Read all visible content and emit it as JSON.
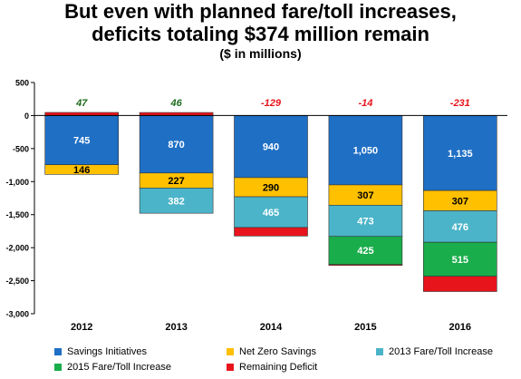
{
  "title_line1": "But even with planned fare/toll increases,",
  "title_line2": "deficits totaling $374 million remain",
  "subtitle": "($ in millions)",
  "chart_data": {
    "type": "bar",
    "stacked": true,
    "categories": [
      "2012",
      "2013",
      "2014",
      "2015",
      "2016"
    ],
    "ylim": [
      -3000,
      500
    ],
    "yticks": [
      500,
      0,
      -500,
      -1000,
      -1500,
      -2000,
      -2500,
      -3000
    ],
    "ytick_labels": [
      "500",
      "0",
      "-500",
      "-1,000",
      "-1,500",
      "-2,000",
      "-2,500",
      "-3,000"
    ],
    "grid": false,
    "legend_position": "bottom",
    "series": [
      {
        "name": "Savings Initiatives",
        "color": "#1f6fc5",
        "values": [
          -745,
          -870,
          -940,
          -1050,
          -1135
        ],
        "labels": [
          "745",
          "870",
          "940",
          "1,050",
          "1,135"
        ],
        "label_color": "#ffffff"
      },
      {
        "name": "Net Zero Savings",
        "color": "#ffc000",
        "values": [
          -146,
          -227,
          -290,
          -307,
          -307
        ],
        "labels": [
          "146",
          "227",
          "290",
          "307",
          "307"
        ],
        "label_color": "#000000"
      },
      {
        "name": "2013 Fare/Toll Increase",
        "color": "#4bb4c8",
        "values": [
          0,
          -382,
          -465,
          -473,
          -476
        ],
        "labels": [
          "",
          "382",
          "465",
          "473",
          "476"
        ],
        "label_color": "#ffffff"
      },
      {
        "name": "2015 Fare/Toll Increase",
        "color": "#1aad4b",
        "values": [
          0,
          0,
          0,
          -425,
          -515
        ],
        "labels": [
          "",
          "",
          "",
          "425",
          "515"
        ],
        "label_color": "#ffffff"
      },
      {
        "name": "Remaining Deficit",
        "color": "#e8141b",
        "values": [
          47,
          46,
          -129,
          -14,
          -231
        ],
        "labels": [
          "",
          "",
          "",
          "",
          ""
        ],
        "label_color": "#ffffff"
      }
    ],
    "totals": {
      "values": [
        47,
        46,
        -129,
        -14,
        -231
      ],
      "labels": [
        "47",
        "46",
        "-129",
        "-14",
        "-231"
      ],
      "colors": [
        "#1e6b1e",
        "#1e6b1e",
        "#e8141b",
        "#e8141b",
        "#e8141b"
      ]
    }
  }
}
